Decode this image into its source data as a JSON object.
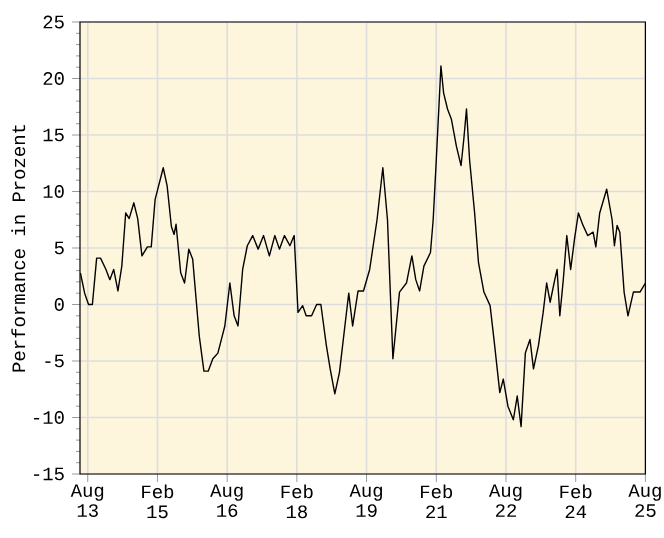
{
  "chart_data": {
    "type": "line",
    "ylabel": "Performance in Prozent",
    "x": [
      "2013-06-04",
      "2013-07-07",
      "2013-08-07",
      "2013-09-07",
      "2013-10-10",
      "2013-11-10",
      "2013-12-22",
      "2014-01-22",
      "2014-02-22",
      "2014-03-25",
      "2014-04-25",
      "2014-05-25",
      "2014-06-22",
      "2014-07-28",
      "2014-08-28",
      "2014-10-01",
      "2014-11-13",
      "2014-12-13",
      "2015-01-13",
      "2015-03-16",
      "2015-04-16",
      "2015-05-19",
      "2015-06-10",
      "2015-06-25",
      "2015-08-01",
      "2015-09-01",
      "2015-10-04",
      "2015-11-04",
      "2015-12-25",
      "2016-02-01",
      "2016-03-04",
      "2016-04-10",
      "2016-05-19",
      "2016-07-13",
      "2016-08-22",
      "2016-09-25",
      "2016-10-25",
      "2016-12-01",
      "2017-01-07",
      "2017-02-19",
      "2017-04-01",
      "2017-05-13",
      "2017-06-28",
      "2017-08-10",
      "2017-09-16",
      "2017-10-25",
      "2017-12-07",
      "2018-01-10",
      "2018-02-10",
      "2018-03-16",
      "2018-04-13",
      "2018-05-25",
      "2018-07-04",
      "2018-08-07",
      "2018-09-19",
      "2018-10-19",
      "2018-11-25",
      "2019-01-01",
      "2019-02-13",
      "2019-03-13",
      "2019-04-13",
      "2019-05-25",
      "2019-07-07",
      "2019-08-25",
      "2019-10-22",
      "2019-12-07",
      "2020-01-13",
      "2020-02-25",
      "2020-04-16",
      "2020-06-10",
      "2020-07-22",
      "2020-08-22",
      "2020-09-22",
      "2020-10-25",
      "2020-12-16",
      "2021-01-07",
      "2021-02-01",
      "2021-03-07",
      "2021-03-28",
      "2021-04-28",
      "2021-05-28",
      "2021-07-07",
      "2021-08-13",
      "2021-09-04",
      "2021-09-25",
      "2021-10-19",
      "2021-11-28",
      "2021-12-28",
      "2022-02-10",
      "2022-03-28",
      "2022-05-01",
      "2022-06-13",
      "2022-07-10",
      "2022-08-16",
      "2022-09-28",
      "2022-10-28",
      "2022-11-28",
      "2023-01-01",
      "2023-02-07",
      "2023-03-04",
      "2023-04-13",
      "2023-05-19",
      "2023-06-16",
      "2023-07-13",
      "2023-08-19",
      "2023-09-07",
      "2023-09-28",
      "2023-10-25",
      "2023-11-22",
      "2023-12-22",
      "2024-01-22",
      "2024-02-22",
      "2024-03-28",
      "2024-05-04",
      "2024-06-16",
      "2024-07-07",
      "2024-08-07",
      "2024-10-01",
      "2024-11-13",
      "2024-12-01",
      "2024-12-22",
      "2025-01-13",
      "2025-02-16",
      "2025-03-16",
      "2025-04-28",
      "2025-06-19",
      "2025-08-01"
    ],
    "series": [
      {
        "color": "#000000",
        "values": [
          2.8,
          1.0,
          0,
          0,
          4.1,
          4.1,
          3.1,
          2.2,
          3.1,
          1.2,
          3.4,
          8.1,
          7.6,
          9.0,
          7.6,
          4.3,
          5.1,
          5.1,
          9.3,
          12.1,
          10.5,
          6.9,
          6.2,
          7.1,
          2.8,
          1.9,
          4.9,
          4.0,
          -2.8,
          -5.9,
          -5.9,
          -4.8,
          -4.3,
          -1.9,
          1.9,
          -1.0,
          -1.9,
          3.1,
          5.2,
          6.1,
          4.9,
          6.1,
          4.3,
          6.1,
          4.9,
          6.1,
          5.2,
          6.1,
          -0.7,
          -0.1,
          -1.0,
          -1.0,
          0,
          0,
          -3.6,
          -5.7,
          -7.9,
          -6.0,
          -1.9,
          1.0,
          -1.9,
          1.2,
          1.2,
          3.1,
          7.5,
          12.1,
          7.5,
          -4.8,
          1.1,
          1.9,
          4.3,
          2.2,
          1.2,
          3.4,
          4.6,
          7.5,
          12.8,
          21.1,
          18.7,
          17.3,
          16.4,
          14.0,
          12.3,
          14.6,
          17.3,
          12.8,
          8.1,
          3.7,
          1.1,
          -0.1,
          -3.4,
          -7.8,
          -6.6,
          -9.0,
          -10.2,
          -8.1,
          -10.8,
          -4.3,
          -3.1,
          -5.7,
          -3.6,
          -0.7,
          1.9,
          0.2,
          2.2,
          3.1,
          -1.0,
          2.2,
          6.1,
          3.1,
          5.8,
          8.1,
          7.0,
          6.1,
          6.4,
          5.1,
          8.1,
          10.2,
          7.5,
          5.2,
          7.0,
          6.4,
          1.1,
          -1.0,
          1.1,
          1.1,
          1.9
        ]
      }
    ],
    "xlim": [
      "2013-06-01",
      "2025-08-01"
    ],
    "xticks": [
      {
        "value": "2013-08",
        "label": "Aug 13"
      },
      {
        "value": "2015-02",
        "label": "Feb 15"
      },
      {
        "value": "2016-08",
        "label": "Aug 16"
      },
      {
        "value": "2018-02",
        "label": "Feb 18"
      },
      {
        "value": "2019-08",
        "label": "Aug 19"
      },
      {
        "value": "2021-02",
        "label": "Feb 21"
      },
      {
        "value": "2022-08",
        "label": "Aug 22"
      },
      {
        "value": "2024-02",
        "label": "Feb 24"
      },
      {
        "value": "2025-08",
        "label": "Aug 25"
      }
    ],
    "ylim": [
      -15,
      25
    ],
    "yticks": [
      -15,
      -10,
      -5,
      0,
      5,
      10,
      15,
      20,
      25
    ],
    "grid": true
  }
}
